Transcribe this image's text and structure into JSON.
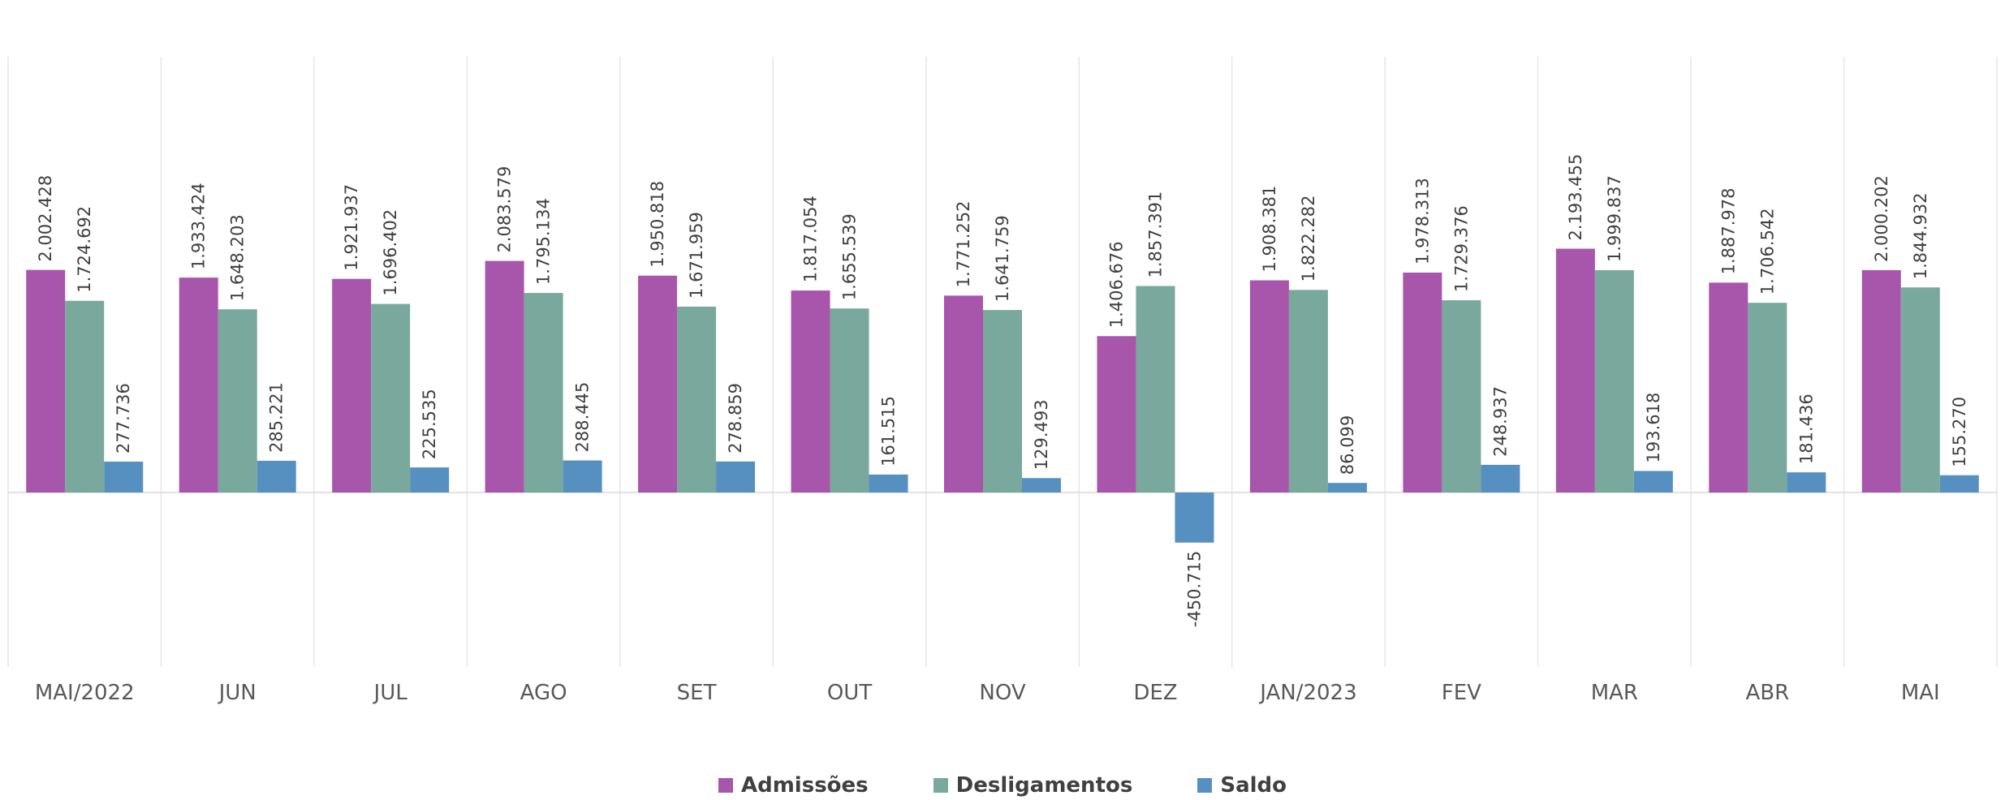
{
  "chart_data": {
    "type": "bar",
    "title": "",
    "xlabel": "",
    "ylabel": "",
    "categories": [
      "MAI/2022",
      "JUN",
      "JUL",
      "AGO",
      "SET",
      "OUT",
      "NOV",
      "DEZ",
      "JAN/2023",
      "FEV",
      "MAR",
      "ABR",
      "MAI"
    ],
    "series": [
      {
        "name": "Admissões",
        "color": "#A855AC",
        "values": [
          2002428,
          1933424,
          1921937,
          2083579,
          1950818,
          1817054,
          1771252,
          1406676,
          1908381,
          1978313,
          2193455,
          1887978,
          2000202
        ],
        "labels": [
          "2.002.428",
          "1.933.424",
          "1.921.937",
          "2.083.579",
          "1.950.818",
          "1.817.054",
          "1.771.252",
          "1.406.676",
          "1.908.381",
          "1.978.313",
          "2.193.455",
          "1.887.978",
          "2.000.202"
        ]
      },
      {
        "name": "Desligamentos",
        "color": "#79A89C",
        "values": [
          1724692,
          1648203,
          1696402,
          1795134,
          1671959,
          1655539,
          1641759,
          1857391,
          1822282,
          1729376,
          1999837,
          1706542,
          1844932
        ],
        "labels": [
          "1.724.692",
          "1.648.203",
          "1.696.402",
          "1.795.134",
          "1.671.959",
          "1.655.539",
          "1.641.759",
          "1.857.391",
          "1.822.282",
          "1.729.376",
          "1.999.837",
          "1.706.542",
          "1.844.932"
        ]
      },
      {
        "name": "Saldo",
        "color": "#5690C0",
        "values": [
          277736,
          285221,
          225535,
          288445,
          278859,
          161515,
          129493,
          -450715,
          86099,
          248937,
          193618,
          181436,
          155270
        ],
        "labels": [
          "277.736",
          "285.221",
          "225.535",
          "288.445",
          "278.859",
          "161.515",
          "129.493",
          "-450.715",
          "86.099",
          "248.937",
          "193.618",
          "181.436",
          "155.270"
        ]
      }
    ],
    "ylim": [
      -1000000,
      2500000
    ],
    "grid": false,
    "legend_position": "bottom"
  }
}
